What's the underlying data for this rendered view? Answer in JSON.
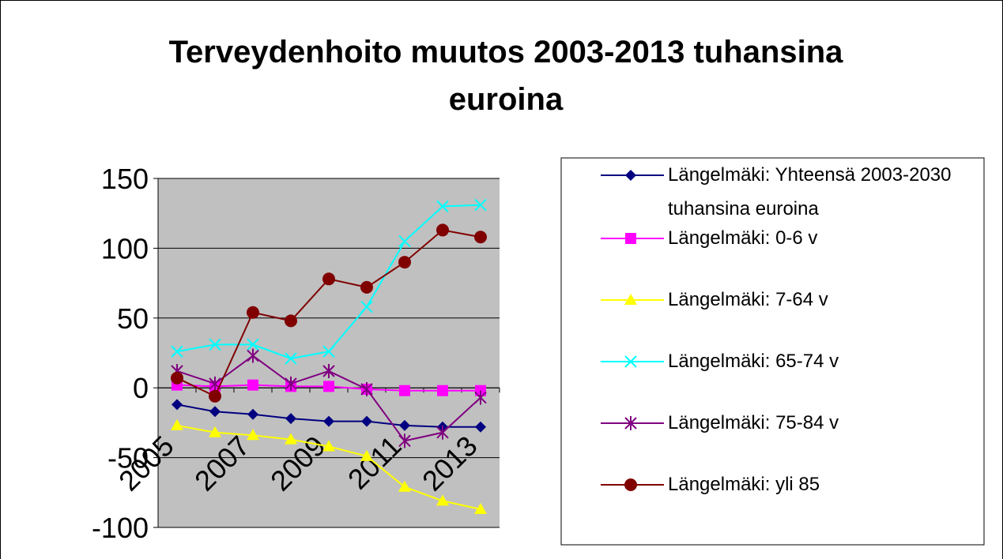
{
  "chart_data": {
    "type": "line",
    "title": "Terveydenhoito muutos 2003-2013 tuhansina euroina",
    "categories": [
      "2005",
      null,
      "2007",
      null,
      "2009",
      null,
      "2011",
      null,
      "2013"
    ],
    "ylim": [
      -100,
      150
    ],
    "yticks": [
      -100,
      -50,
      0,
      50,
      100,
      150
    ],
    "grid": true,
    "legend": "right",
    "series": [
      {
        "name": "Längelmäki: Yhteensä 2003-2030 tuhansina euroina",
        "color": "#000080",
        "marker": "diamond",
        "values": [
          -12,
          -17,
          -19,
          -22,
          -24,
          -24,
          -27,
          -28,
          -28
        ]
      },
      {
        "name": "Längelmäki: 0-6 v",
        "color": "#ff00ff",
        "marker": "square",
        "values": [
          2,
          1,
          2,
          1,
          1,
          -1,
          -2,
          -2,
          -2
        ]
      },
      {
        "name": "Längelmäki: 7-64 v",
        "color": "#ffff00",
        "marker": "triangle",
        "values": [
          -27,
          -32,
          -34,
          -37,
          -42,
          -49,
          -71,
          -81,
          -87
        ]
      },
      {
        "name": "Längelmäki: 65-74 v",
        "color": "#00ffff",
        "marker": "x",
        "values": [
          26,
          31,
          31,
          21,
          26,
          58,
          105,
          130,
          131
        ]
      },
      {
        "name": "Längelmäki: 75-84 v",
        "color": "#800080",
        "marker": "star",
        "values": [
          12,
          3,
          23,
          3,
          12,
          -1,
          -38,
          -32,
          -7
        ]
      },
      {
        "name": "Längelmäki: yli 85",
        "color": "#800000",
        "marker": "circle",
        "values": [
          7,
          -6,
          54,
          48,
          78,
          72,
          90,
          113,
          108
        ]
      }
    ]
  }
}
